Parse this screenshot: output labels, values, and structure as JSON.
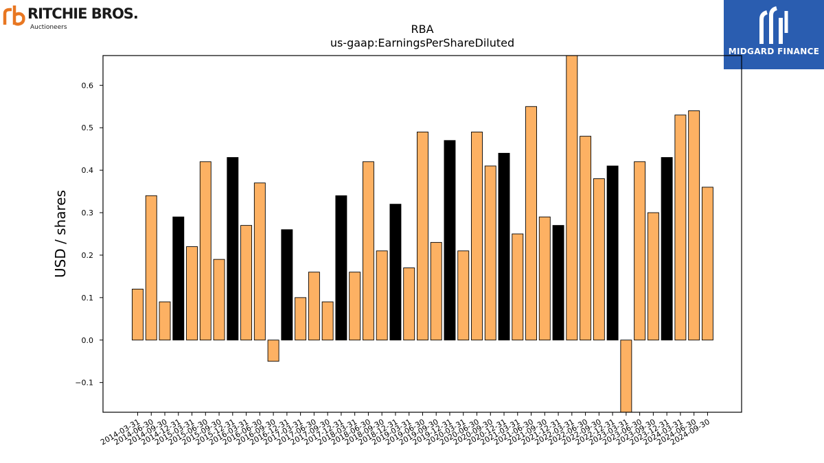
{
  "logo_left": {
    "name": "RITCHIE BROS.",
    "tagline": "Auctioneers",
    "mark_color": "#e87722"
  },
  "logo_right": {
    "name": "MIDGARD FINANCE",
    "background": "#2a5db0"
  },
  "chart_data": {
    "type": "bar",
    "title": "RBA",
    "subtitle": "us-gaap:EarningsPerShareDiluted",
    "xlabel": "",
    "ylabel": "USD / shares",
    "ylim": [
      -0.17,
      0.67
    ],
    "yticks": [
      -0.1,
      0.0,
      0.1,
      0.2,
      0.3,
      0.4,
      0.5,
      0.6
    ],
    "grid": false,
    "colors": {
      "quarter": "#fdb163",
      "year_end": "#000000",
      "edge": "#000000"
    },
    "categories": [
      "2014-03-31",
      "2014-06-30",
      "2014-09-30",
      "2014-12-31",
      "2015-03-31",
      "2015-06-30",
      "2015-09-30",
      "2015-12-31",
      "2016-03-31",
      "2016-06-30",
      "2016-09-30",
      "2016-12-31",
      "2017-03-31",
      "2017-06-30",
      "2017-09-30",
      "2017-12-31",
      "2018-03-31",
      "2018-06-30",
      "2018-09-30",
      "2018-12-31",
      "2019-03-31",
      "2019-06-30",
      "2019-09-30",
      "2019-12-31",
      "2020-03-31",
      "2020-06-30",
      "2020-09-30",
      "2020-12-31",
      "2021-03-31",
      "2021-06-30",
      "2021-09-30",
      "2021-12-31",
      "2022-03-31",
      "2022-06-30",
      "2022-09-30",
      "2022-12-31",
      "2023-03-31",
      "2023-06-30",
      "2023-09-30",
      "2023-12-31",
      "2024-03-31",
      "2024-06-30",
      "2024-09-30"
    ],
    "values": [
      0.12,
      0.34,
      0.09,
      0.29,
      0.22,
      0.42,
      0.19,
      0.43,
      0.27,
      0.37,
      -0.05,
      0.26,
      0.1,
      0.16,
      0.09,
      0.34,
      0.16,
      0.42,
      0.21,
      0.32,
      0.17,
      0.49,
      0.23,
      0.47,
      0.21,
      0.49,
      0.41,
      0.44,
      0.25,
      0.55,
      0.29,
      0.27,
      0.7,
      0.48,
      0.38,
      0.41,
      -0.2,
      0.42,
      0.3,
      0.43,
      0.53,
      0.54,
      0.36
    ],
    "year_end": [
      false,
      false,
      false,
      true,
      false,
      false,
      false,
      true,
      false,
      false,
      false,
      true,
      false,
      false,
      false,
      true,
      false,
      false,
      false,
      true,
      false,
      false,
      false,
      true,
      false,
      false,
      false,
      true,
      false,
      false,
      false,
      true,
      false,
      false,
      false,
      true,
      false,
      false,
      false,
      true,
      false,
      false,
      false
    ]
  }
}
